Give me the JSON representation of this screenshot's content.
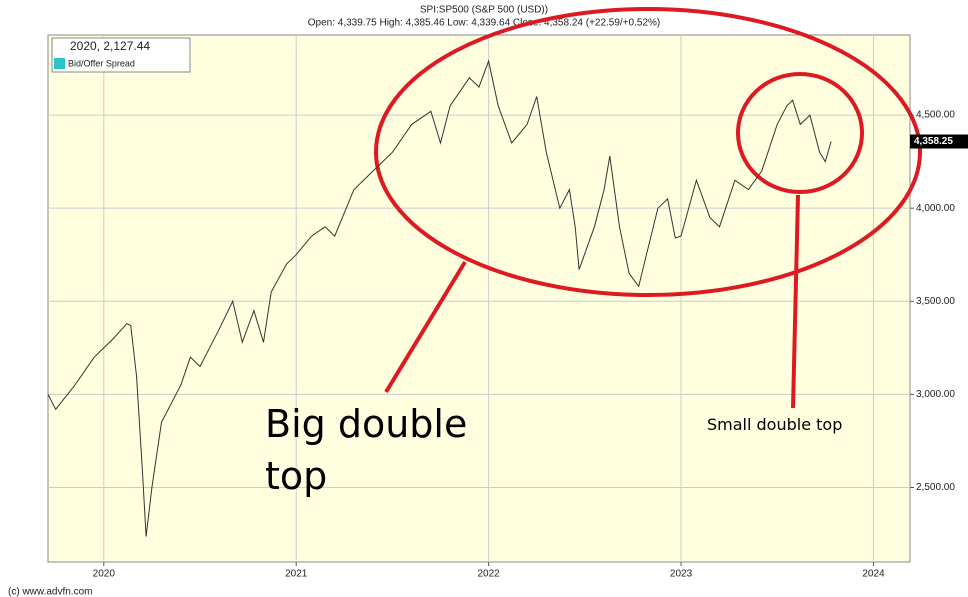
{
  "chart_data": {
    "type": "line",
    "title": "SPI:SP500 (S&P 500 (USD))",
    "subtitle": "Open: 4,339.75 High: 4,385.46 Low: 4,339.64 Close: 4,358.24 (+22.59/+0.52%)",
    "legend_title": "2020, 2,127.44",
    "legend_entry": "Bid/Offer Spread",
    "legend_color": "#2ec4c4",
    "last_value_label": "4,358.25",
    "footer": "(c) www.advfn.com",
    "annotations": [
      "Big double top",
      "Small double top"
    ],
    "color": "#333333",
    "grid": true,
    "x": [
      2019.71,
      2019.75,
      2019.85,
      2019.95,
      2020.05,
      2020.12,
      2020.14,
      2020.17,
      2020.2,
      2020.22,
      2020.25,
      2020.3,
      2020.4,
      2020.45,
      2020.5,
      2020.55,
      2020.6,
      2020.67,
      2020.72,
      2020.78,
      2020.83,
      2020.87,
      2020.95,
      2021.0,
      2021.08,
      2021.15,
      2021.2,
      2021.3,
      2021.4,
      2021.5,
      2021.6,
      2021.7,
      2021.75,
      2021.8,
      2021.9,
      2021.95,
      2022.0,
      2022.05,
      2022.12,
      2022.2,
      2022.25,
      2022.3,
      2022.37,
      2022.42,
      2022.45,
      2022.47,
      2022.55,
      2022.6,
      2022.63,
      2022.68,
      2022.73,
      2022.78,
      2022.82,
      2022.88,
      2022.93,
      2022.97,
      2023.0,
      2023.08,
      2023.15,
      2023.2,
      2023.28,
      2023.35,
      2023.42,
      2023.5,
      2023.55,
      2023.58,
      2023.62,
      2023.67,
      2023.72,
      2023.75,
      2023.78
    ],
    "values": [
      3000,
      2920,
      3050,
      3200,
      3300,
      3380,
      3370,
      3100,
      2600,
      2237,
      2500,
      2850,
      3050,
      3200,
      3150,
      3250,
      3350,
      3500,
      3280,
      3450,
      3280,
      3550,
      3700,
      3750,
      3850,
      3900,
      3850,
      4100,
      4200,
      4300,
      4450,
      4520,
      4350,
      4550,
      4700,
      4650,
      4790,
      4550,
      4350,
      4450,
      4600,
      4300,
      4000,
      4100,
      3900,
      3670,
      3900,
      4100,
      4280,
      3900,
      3650,
      3580,
      3750,
      4000,
      4050,
      3840,
      3850,
      4150,
      3950,
      3900,
      4150,
      4100,
      4200,
      4450,
      4550,
      4580,
      4450,
      4500,
      4300,
      4250,
      4358
    ],
    "xlim": [
      2019.71,
      2024.19
    ],
    "xticks": [
      2020,
      2021,
      2022,
      2023,
      2024
    ],
    "ylim": [
      2100,
      4930
    ],
    "yticks": [
      {
        "value": 2500,
        "label": "2,500.00"
      },
      {
        "value": 3000,
        "label": "3,000.00"
      },
      {
        "value": 3500,
        "label": "3,500.00"
      },
      {
        "value": 4000,
        "label": "4,000.00"
      },
      {
        "value": 4500,
        "label": "4,500.00"
      }
    ]
  }
}
